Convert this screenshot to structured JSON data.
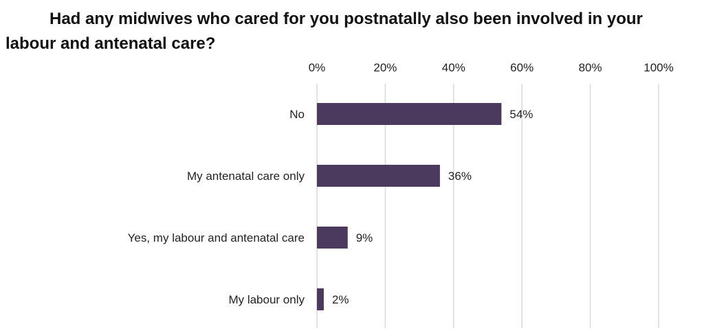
{
  "chart_data": {
    "type": "bar",
    "orientation": "horizontal",
    "title": "Had any midwives who cared for you postnatally also been involved in your labour and antenatal care?",
    "categories": [
      "No",
      "My antenatal care only",
      "Yes, my labour and antenatal care",
      "My labour only"
    ],
    "values": [
      54,
      36,
      9,
      2
    ],
    "data_labels": [
      "54%",
      "36%",
      "9%",
      "2%"
    ],
    "xlim": [
      0,
      100
    ],
    "x_ticks": [
      0,
      20,
      40,
      60,
      80,
      100
    ],
    "x_tick_labels": [
      "0%",
      "20%",
      "40%",
      "60%",
      "80%",
      "100%"
    ],
    "x_axis_position": "top",
    "grid": true,
    "legend": "none",
    "bar_color": "#4b3a5e",
    "grid_color": "#d9d9d9"
  }
}
